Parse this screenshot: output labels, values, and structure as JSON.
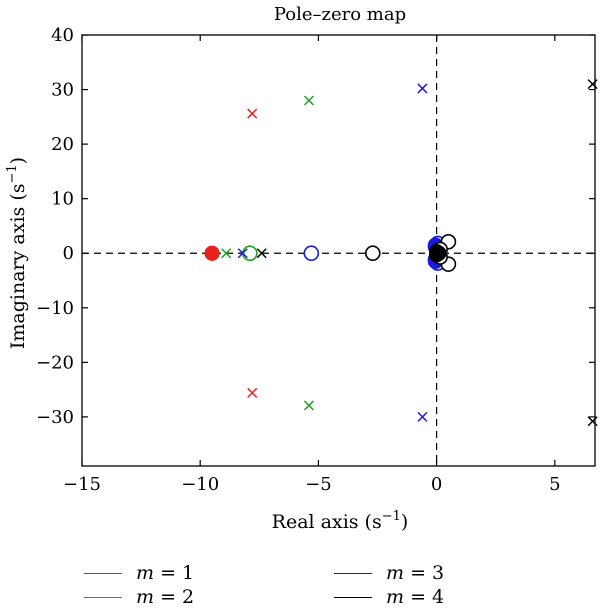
{
  "chart_data": {
    "type": "scatter",
    "title": "Pole–zero map",
    "xlabel": "Real axis",
    "ylabel": "Imaginary axis",
    "xunit": "(s",
    "yunit": "(s",
    "unit_exp": "−1",
    "unit_close": ")",
    "xlim": [
      -15,
      6.7
    ],
    "ylim": [
      -39,
      40
    ],
    "xticks": [
      -15,
      -10,
      -5,
      0,
      5
    ],
    "yticks": [
      40,
      30,
      20,
      10,
      0,
      -10,
      -20,
      -30
    ],
    "xtick_labels": [
      "−15",
      "−10",
      "−5",
      "0",
      "5"
    ],
    "ytick_labels": [
      "40",
      "30",
      "20",
      "10",
      "0",
      "−10",
      "−20",
      "−30"
    ],
    "grid": false,
    "legend_position": "bottom",
    "series": [
      {
        "name": "m = 1",
        "color": "#e8211d",
        "poles": [
          [
            -7.8,
            25.6
          ],
          [
            -7.8,
            -25.6
          ]
        ],
        "zeros": [],
        "filled_zeros": [
          [
            -9.5,
            0
          ]
        ]
      },
      {
        "name": "m = 2",
        "color": "#1fa01f",
        "poles": [
          [
            -5.4,
            28.0
          ],
          [
            -5.4,
            -27.9
          ],
          [
            -8.9,
            0
          ]
        ],
        "zeros": [
          [
            -7.9,
            0
          ]
        ],
        "filled_zeros": []
      },
      {
        "name": "m = 3",
        "color": "#1a1adb",
        "poles": [
          [
            -0.6,
            30.2
          ],
          [
            -0.6,
            -30.0
          ],
          [
            -8.2,
            0
          ]
        ],
        "zeros": [
          [
            -5.3,
            0
          ],
          [
            -0.05,
            1.2
          ],
          [
            -0.05,
            -1.2
          ],
          [
            0.05,
            1.8
          ],
          [
            0.05,
            -1.8
          ]
        ],
        "filled_zeros": [
          [
            -0.05,
            1.5
          ],
          [
            -0.05,
            -1.5
          ],
          [
            0.0,
            0.6
          ],
          [
            0.0,
            -0.6
          ]
        ]
      },
      {
        "name": "m = 4",
        "color": "#000000",
        "poles": [
          [
            6.6,
            31.0
          ],
          [
            6.6,
            -30.8
          ],
          [
            -7.4,
            0
          ]
        ],
        "zeros": [
          [
            -2.7,
            0
          ],
          [
            0.5,
            2.1
          ],
          [
            0.5,
            -2.0
          ],
          [
            0.15,
            0.7
          ],
          [
            0.15,
            -0.7
          ]
        ],
        "filled_zeros": [
          [
            0.0,
            0.3
          ],
          [
            0.0,
            -0.3
          ],
          [
            0.1,
            0.0
          ]
        ]
      }
    ],
    "legend": [
      {
        "prefix": "m",
        "rest": " = 1",
        "color": "#e8211d"
      },
      {
        "prefix": "m",
        "rest": " = 2",
        "color": "#1fa01f"
      },
      {
        "prefix": "m",
        "rest": " = 3",
        "color": "#1a1adb"
      },
      {
        "prefix": "m",
        "rest": " = 4",
        "color": "#000000"
      }
    ]
  }
}
